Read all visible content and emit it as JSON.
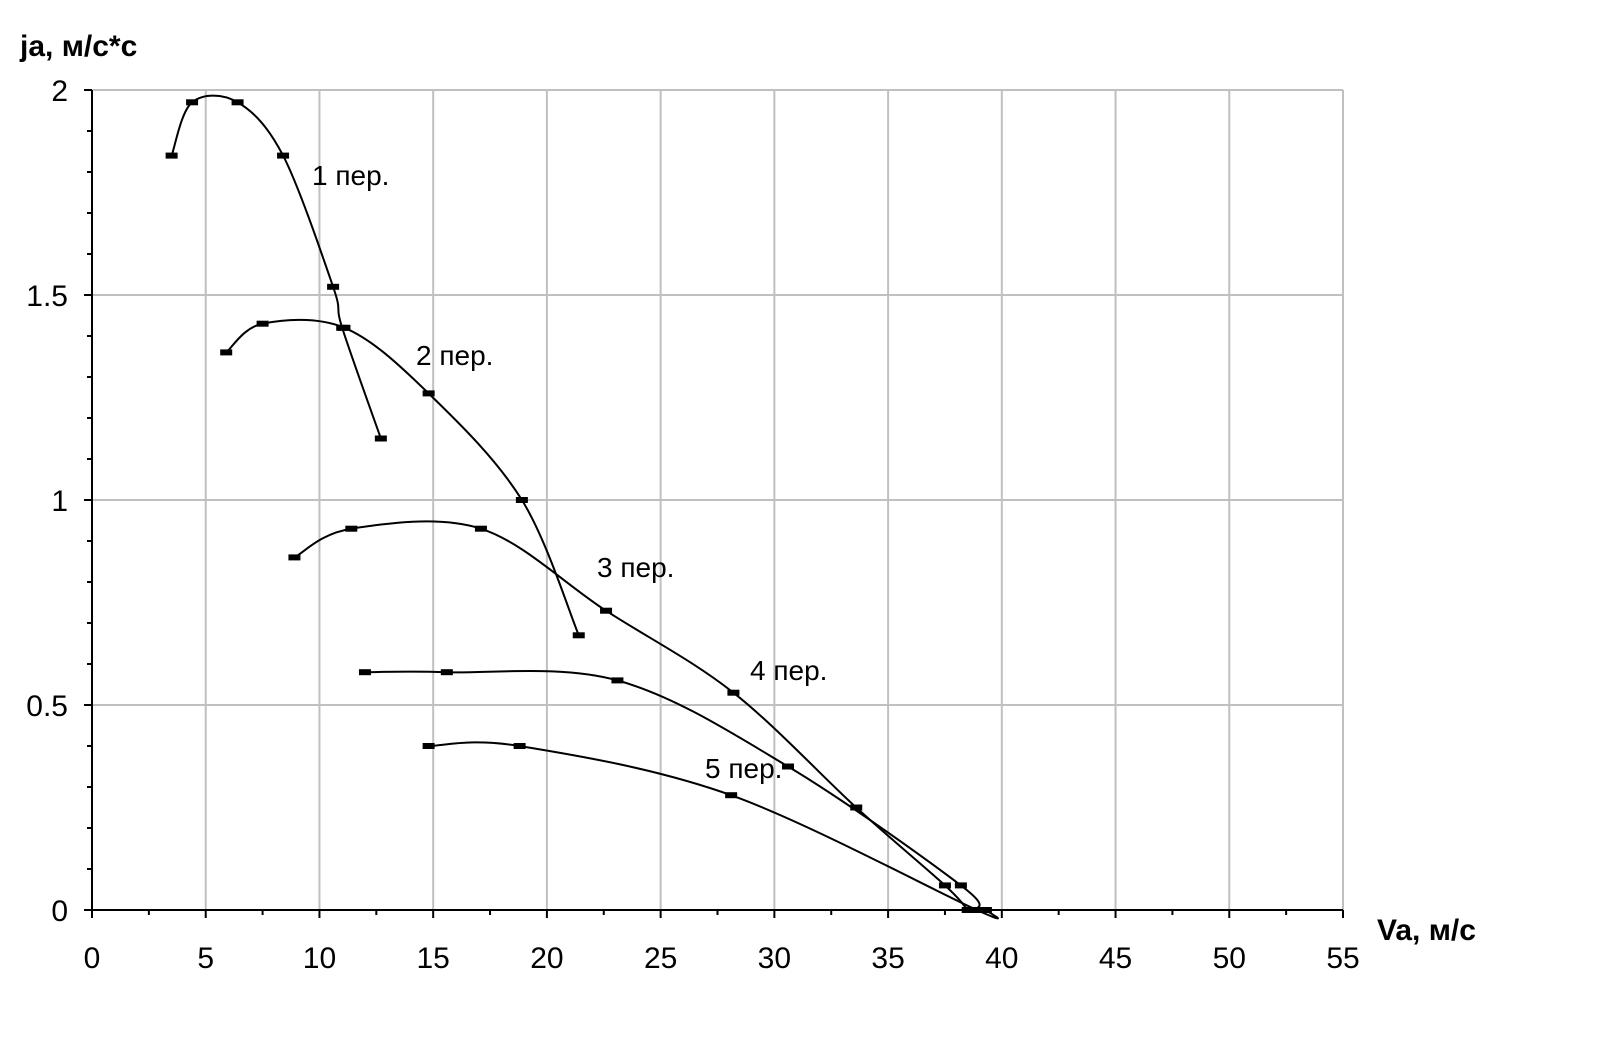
{
  "chart_data": {
    "type": "line",
    "ylabel": "ja, м/с*с",
    "xlabel": "Va, м/с",
    "xlim": [
      0,
      55
    ],
    "ylim": [
      0,
      2
    ],
    "xticks": [
      "0",
      "5",
      "10",
      "15",
      "20",
      "25",
      "30",
      "35",
      "40",
      "45",
      "50",
      "55"
    ],
    "yticks": [
      "0",
      "0.5",
      "1",
      "1.5",
      "2"
    ],
    "grid": true,
    "legend": "none",
    "series": [
      {
        "name": "1 пер.",
        "x": [
          3.5,
          4.4,
          6.4,
          8.4,
          10.6,
          11.0,
          12.7
        ],
        "y": [
          1.84,
          1.97,
          1.97,
          1.84,
          1.52,
          1.42,
          1.15
        ]
      },
      {
        "name": "2 пер.",
        "x": [
          5.9,
          7.5,
          11.1,
          14.8,
          18.9,
          21.4
        ],
        "y": [
          1.36,
          1.43,
          1.42,
          1.26,
          1.0,
          0.67
        ]
      },
      {
        "name": "3 пер.",
        "x": [
          8.9,
          11.4,
          17.1,
          22.6,
          28.2,
          33.6,
          37.5,
          38.5
        ],
        "y": [
          0.86,
          0.93,
          0.93,
          0.73,
          0.53,
          0.25,
          0.06,
          0.0
        ]
      },
      {
        "name": "4 пер.",
        "x": [
          12.0,
          15.6,
          23.1,
          30.6,
          38.2,
          38.9
        ],
        "y": [
          0.58,
          0.58,
          0.56,
          0.35,
          0.06,
          0.0
        ]
      },
      {
        "name": "5 пер.",
        "x": [
          14.8,
          18.8,
          28.1,
          38.9,
          39.3
        ],
        "y": [
          0.4,
          0.4,
          0.28,
          0.0,
          0.0
        ]
      }
    ],
    "annotations": [
      "1 пер.",
      "2 пер.",
      "3 пер.",
      "4 пер.",
      "5 пер."
    ]
  }
}
